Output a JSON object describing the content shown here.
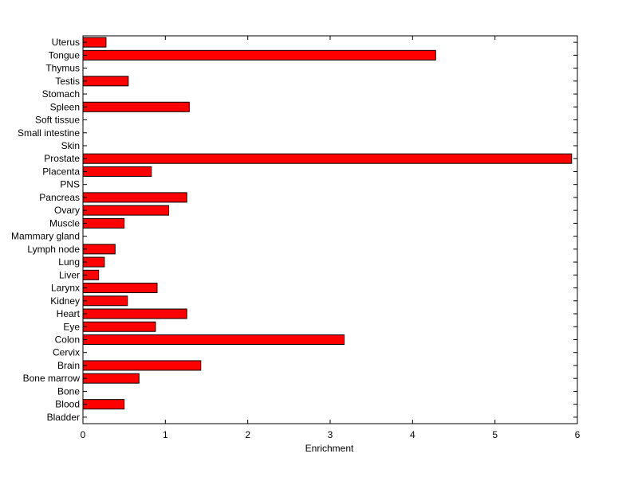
{
  "chart_data": {
    "type": "bar",
    "orientation": "horizontal",
    "xlabel": "Enrichment",
    "ylabel": "",
    "title": "",
    "xlim": [
      0,
      6
    ],
    "xticks": [
      "0",
      "1",
      "2",
      "3",
      "4",
      "5",
      "6"
    ],
    "grid": false,
    "bar_color": "#ff0000",
    "categories": [
      "Bladder",
      "Blood",
      "Bone",
      "Bone marrow",
      "Brain",
      "Cervix",
      "Colon",
      "Eye",
      "Heart",
      "Kidney",
      "Larynx",
      "Liver",
      "Lung",
      "Lymph node",
      "Mammary gland",
      "Muscle",
      "Ovary",
      "Pancreas",
      "PNS",
      "Placenta",
      "Prostate",
      "Skin",
      "Small intestine",
      "Soft tissue",
      "Spleen",
      "Stomach",
      "Testis",
      "Thymus",
      "Tongue",
      "Uterus"
    ],
    "values": [
      0,
      0.5,
      0,
      0.68,
      1.43,
      0,
      3.17,
      0.88,
      1.26,
      0.54,
      0.9,
      0.19,
      0.26,
      0.39,
      0,
      0.5,
      1.04,
      1.26,
      0,
      0.83,
      5.93,
      0,
      0,
      0,
      1.29,
      0,
      0.55,
      0,
      4.28,
      0.28
    ]
  }
}
